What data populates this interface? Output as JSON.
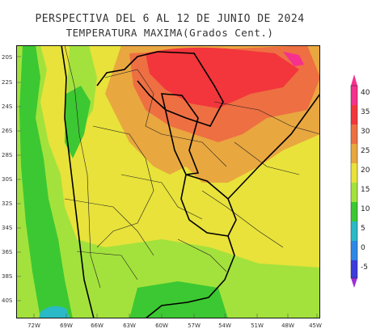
{
  "header": {
    "title_line1": "PERSPECTIVA DEL 6 AL 12 DE JUNIO DE 2024",
    "title_line2": "TEMPERATURA MAXIMA(Grados Cent.)"
  },
  "map": {
    "lat_labels": [
      "20S",
      "22S",
      "24S",
      "26S",
      "28S",
      "30S",
      "32S",
      "34S",
      "36S",
      "38S",
      "40S"
    ],
    "lon_labels": [
      "72W",
      "69W",
      "66W",
      "63W",
      "60W",
      "57W",
      "54W",
      "51W",
      "48W",
      "45W"
    ],
    "zones": [
      {
        "name": "10-15",
        "color": "#3cc832"
      },
      {
        "name": "15-20",
        "color": "#a3e23c"
      },
      {
        "name": "20-25",
        "color": "#e8e23a"
      },
      {
        "name": "25-30",
        "color": "#e9a73f"
      },
      {
        "name": "30-35",
        "color": "#ee6f42"
      },
      {
        "name": "35-40",
        "color": "#f2363c"
      },
      {
        "name": "5-10",
        "color": "#2ab9c6"
      }
    ]
  },
  "legend": {
    "labels": [
      "40",
      "35",
      "30",
      "25",
      "20",
      "15",
      "10",
      "5",
      "0",
      "-5"
    ],
    "colors": [
      "#f6308e",
      "#f2363c",
      "#ee6f42",
      "#e9a73f",
      "#e8e23a",
      "#a3e23c",
      "#3cc832",
      "#2ab9c6",
      "#2e88e6",
      "#3c3cdc",
      "#9b2fd6"
    ]
  }
}
